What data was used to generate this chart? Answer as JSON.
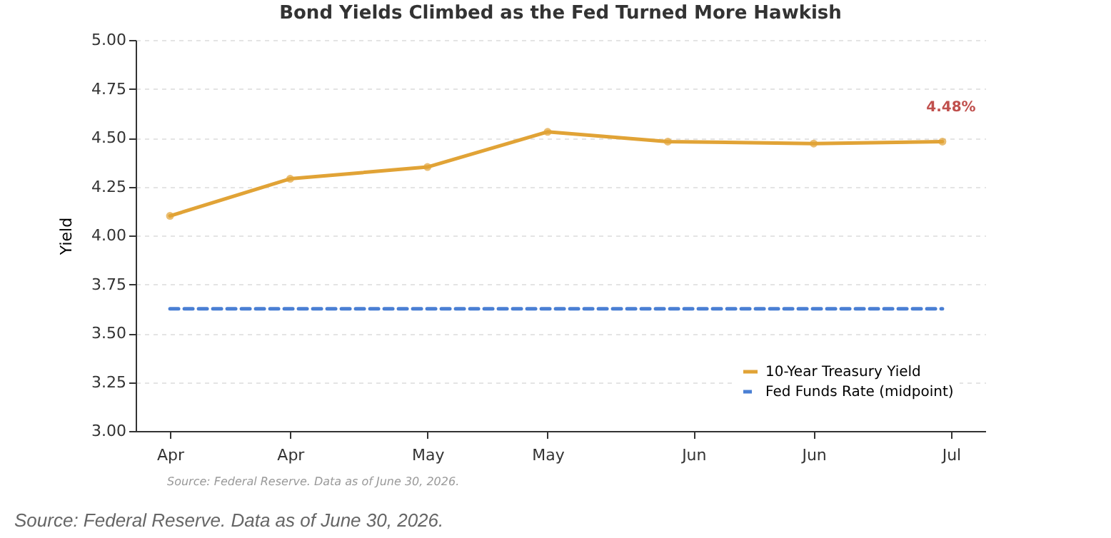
{
  "chart_data": {
    "type": "line",
    "title": "Bond Yields Climbed as the Fed Turned More Hawkish",
    "ylabel": "Yield",
    "x": [
      "2026-04-01",
      "2026-04-15",
      "2026-05-01",
      "2026-05-15",
      "2026-05-29",
      "2026-06-15",
      "2026-06-30"
    ],
    "series": [
      {
        "name": "10-Year Treasury Yield",
        "color": "#e1a336",
        "values": [
          4.1,
          4.29,
          4.35,
          4.53,
          4.48,
          4.47,
          4.48
        ],
        "marker": "circle",
        "line_style": "solid"
      },
      {
        "name": "Fed Funds Rate (midpoint)",
        "color": "#4a7fd4",
        "x": [
          "2026-04-01",
          "2026-06-30"
        ],
        "values": [
          3.625,
          3.625
        ],
        "marker": "none",
        "line_style": "dashed"
      }
    ],
    "xlim": [
      "2026-03-28",
      "2026-07-05"
    ],
    "xticks": [
      {
        "value": "2026-04-01",
        "label": "Apr"
      },
      {
        "value": "2026-04-15",
        "label": "Apr"
      },
      {
        "value": "2026-05-01",
        "label": "May"
      },
      {
        "value": "2026-05-15",
        "label": "May"
      },
      {
        "value": "2026-06-01",
        "label": "Jun"
      },
      {
        "value": "2026-06-15",
        "label": "Jun"
      },
      {
        "value": "2026-07-01",
        "label": "Jul"
      }
    ],
    "ylim": [
      3.0,
      5.0
    ],
    "yticks": [
      {
        "value": 3,
        "label": "3.00"
      },
      {
        "value": 3.25,
        "label": "3.25"
      },
      {
        "value": 3.5,
        "label": "3.50"
      },
      {
        "value": 3.75,
        "label": "3.75"
      },
      {
        "value": 4,
        "label": "4.00"
      },
      {
        "value": 4.25,
        "label": "4.25"
      },
      {
        "value": 4.5,
        "label": "4.50"
      },
      {
        "value": 4.75,
        "label": "4.75"
      },
      {
        "value": 5,
        "label": "5.00"
      }
    ],
    "grid": "y",
    "legend": "bottom right",
    "annotations": [
      {
        "text": "4.48%",
        "x": "2026-06-30",
        "y": 4.48
      },
      "Source: Federal Reserve. Data as of June 30, 2026.",
      "Source: Federal Reserve. Data as of June 30, 2026."
    ]
  }
}
